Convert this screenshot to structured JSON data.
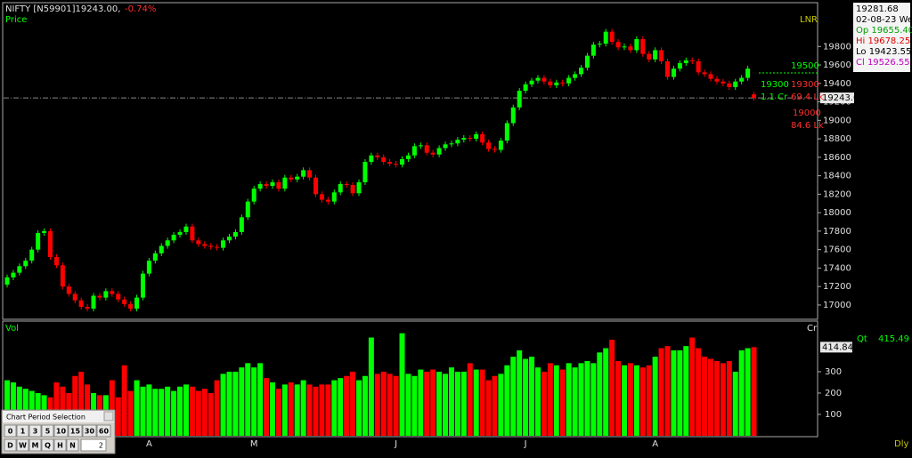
{
  "header": {
    "symbol": "NIFTY [N59901]19243.00,",
    "change": "-0.74%"
  },
  "info_panel": {
    "price": "19281.68",
    "date": "02-08-23 We",
    "open": "Op 19655.40",
    "high": "Hi 19678.25",
    "low": "Lo 19423.55",
    "close": "Cl 19526.55"
  },
  "chart_data": [
    {
      "type": "candlestick",
      "title": "Price",
      "mode_label": "LNR",
      "categories": [
        null,
        null,
        null,
        null,
        null,
        null,
        null,
        null,
        null,
        null,
        null,
        null,
        null,
        null,
        null,
        null,
        null,
        null,
        null,
        null,
        null,
        null,
        null,
        "A",
        null,
        null,
        null,
        null,
        null,
        null,
        null,
        null,
        null,
        null,
        null,
        null,
        null,
        null,
        null,
        null,
        "M",
        null,
        null,
        null,
        null,
        null,
        null,
        null,
        null,
        null,
        null,
        null,
        null,
        null,
        null,
        null,
        null,
        null,
        null,
        null,
        null,
        null,
        null,
        "J",
        null,
        null,
        null,
        null,
        null,
        null,
        null,
        null,
        null,
        null,
        null,
        null,
        null,
        null,
        null,
        null,
        null,
        null,
        null,
        null,
        "J",
        null,
        null,
        null,
        null,
        null,
        null,
        null,
        null,
        null,
        null,
        null,
        null,
        null,
        null,
        null,
        null,
        null,
        null,
        null,
        null,
        "A",
        null,
        null,
        null,
        null,
        null,
        null,
        null,
        null,
        null,
        null,
        null,
        null,
        null,
        null,
        null,
        null
      ],
      "open": [
        17220,
        17300,
        17350,
        17420,
        17480,
        17600,
        17780,
        17800,
        17520,
        17430,
        17200,
        17120,
        17050,
        16980,
        16960,
        17100,
        17080,
        17150,
        17120,
        17060,
        17010,
        16960,
        17080,
        17340,
        17480,
        17560,
        17640,
        17700,
        17760,
        17790,
        17850,
        17700,
        17660,
        17640,
        17630,
        17620,
        17700,
        17740,
        17790,
        17950,
        18120,
        18260,
        18310,
        18290,
        18330,
        18260,
        18380,
        18360,
        18390,
        18460,
        18380,
        18200,
        18140,
        18120,
        18220,
        18310,
        18300,
        18210,
        18330,
        18550,
        18620,
        18600,
        18550,
        18530,
        18520,
        18580,
        18620,
        18720,
        18730,
        18650,
        18630,
        18700,
        18740,
        18750,
        18790,
        18810,
        18800,
        18850,
        18760,
        18690,
        18680,
        18780,
        18970,
        19140,
        19320,
        19390,
        19430,
        19460,
        19420,
        19380,
        19410,
        19400,
        19460,
        19500,
        19570,
        19700,
        19820,
        19830,
        19960,
        19850,
        19790,
        19800,
        19760,
        19880,
        19720,
        19660,
        19760,
        19640,
        19470,
        19560,
        19620,
        19650,
        19640,
        19520,
        19500,
        19450,
        19420,
        19400,
        19360,
        19420,
        19460,
        19281.68
      ],
      "high": [
        17330,
        17380,
        17450,
        17510,
        17630,
        17810,
        17830,
        17830,
        17550,
        17460,
        17230,
        17150,
        17080,
        17010,
        17130,
        17130,
        17180,
        17180,
        17150,
        17090,
        17040,
        17110,
        17370,
        17510,
        17590,
        17670,
        17730,
        17790,
        17820,
        17880,
        17880,
        17730,
        17690,
        17670,
        17660,
        17730,
        17770,
        17820,
        17980,
        18150,
        18290,
        18340,
        18340,
        18360,
        18360,
        18410,
        18410,
        18420,
        18490,
        18490,
        18410,
        18230,
        18170,
        18250,
        18340,
        18340,
        18330,
        18360,
        18580,
        18650,
        18650,
        18630,
        18580,
        18560,
        18610,
        18650,
        18750,
        18760,
        18760,
        18680,
        18730,
        18770,
        18780,
        18820,
        18840,
        18840,
        18880,
        18880,
        18790,
        18720,
        18810,
        19000,
        19170,
        19350,
        19420,
        19460,
        19490,
        19490,
        19450,
        19440,
        19440,
        19490,
        19530,
        19600,
        19730,
        19850,
        19860,
        19990,
        19990,
        19880,
        19830,
        19830,
        19910,
        19910,
        19750,
        19790,
        19790,
        19670,
        19590,
        19650,
        19680,
        19680,
        19670,
        19550,
        19530,
        19480,
        19450,
        19430,
        19450,
        19490,
        19590,
        19310
      ],
      "low": [
        17190,
        17270,
        17320,
        17390,
        17450,
        17570,
        17750,
        17490,
        17400,
        17170,
        17090,
        17020,
        16950,
        16930,
        16930,
        17050,
        17050,
        17090,
        17030,
        16980,
        16930,
        16930,
        17050,
        17310,
        17450,
        17530,
        17610,
        17670,
        17730,
        17760,
        17670,
        17630,
        17610,
        17600,
        17590,
        17590,
        17670,
        17710,
        17760,
        17920,
        18090,
        18230,
        18260,
        18260,
        18230,
        18230,
        18330,
        18330,
        18360,
        18350,
        18170,
        18110,
        18090,
        18090,
        18190,
        18270,
        18180,
        18180,
        18300,
        18520,
        18570,
        18520,
        18500,
        18490,
        18490,
        18550,
        18590,
        18690,
        18620,
        18600,
        18600,
        18670,
        18710,
        18720,
        18760,
        18770,
        18770,
        18730,
        18660,
        18650,
        18650,
        18750,
        18940,
        19110,
        19290,
        19360,
        19400,
        19390,
        19350,
        19350,
        19370,
        19370,
        19430,
        19470,
        19540,
        19670,
        19790,
        19800,
        19820,
        19760,
        19760,
        19730,
        19730,
        19690,
        19630,
        19630,
        19610,
        19440,
        19440,
        19530,
        19590,
        19610,
        19490,
        19470,
        19420,
        19390,
        19370,
        19330,
        19330,
        19390,
        19430,
        19213
      ],
      "close": [
        17300,
        17350,
        17420,
        17480,
        17600,
        17780,
        17800,
        17520,
        17430,
        17200,
        17120,
        17050,
        16980,
        16960,
        17100,
        17080,
        17150,
        17120,
        17060,
        17010,
        16960,
        17080,
        17340,
        17480,
        17560,
        17640,
        17700,
        17760,
        17790,
        17850,
        17700,
        17660,
        17640,
        17630,
        17620,
        17700,
        17740,
        17790,
        17950,
        18120,
        18260,
        18310,
        18290,
        18330,
        18260,
        18380,
        18360,
        18390,
        18460,
        18380,
        18200,
        18140,
        18120,
        18220,
        18310,
        18300,
        18210,
        18330,
        18550,
        18620,
        18600,
        18550,
        18530,
        18520,
        18580,
        18620,
        18720,
        18730,
        18650,
        18630,
        18700,
        18740,
        18750,
        18790,
        18810,
        18800,
        18850,
        18760,
        18690,
        18680,
        18780,
        18970,
        19140,
        19320,
        19390,
        19430,
        19460,
        19420,
        19380,
        19410,
        19400,
        19460,
        19500,
        19570,
        19700,
        19820,
        19830,
        19960,
        19850,
        19790,
        19800,
        19760,
        19880,
        19720,
        19660,
        19760,
        19640,
        19470,
        19560,
        19620,
        19650,
        19640,
        19520,
        19500,
        19450,
        19420,
        19400,
        19360,
        19420,
        19460,
        19560,
        19243
      ],
      "up_color": "#00ff00",
      "down_color": "#ff0000",
      "ylim": [
        16855,
        20265
      ],
      "yticks": [
        17000,
        17200,
        17400,
        17600,
        17800,
        18000,
        18200,
        18400,
        18600,
        18800,
        19000,
        19200,
        19400,
        19600,
        19800
      ],
      "last_price": {
        "value": 19243,
        "label": "19243.0"
      },
      "level_labels": [
        {
          "text": "19500",
          "color": "#00ff00"
        },
        {
          "text": "19300",
          "color": "#00ff00"
        },
        {
          "text": "19300",
          "color": "#ff3030"
        },
        {
          "text": "1.1 Cr",
          "color": "#00ff00"
        },
        {
          "text": "69.4 Lk",
          "color": "#ff3030"
        },
        {
          "text": "19000",
          "color": "#ff3030"
        },
        {
          "text": "84.6 Lk",
          "color": "#ff3030"
        }
      ]
    },
    {
      "type": "bar",
      "title": "Vol",
      "unit_label": "Cr",
      "values": [
        260,
        250,
        230,
        220,
        210,
        200,
        190,
        180,
        250,
        230,
        200,
        280,
        300,
        240,
        200,
        190,
        190,
        260,
        180,
        330,
        210,
        260,
        230,
        240,
        220,
        220,
        230,
        210,
        230,
        240,
        230,
        210,
        220,
        200,
        260,
        290,
        300,
        300,
        320,
        340,
        320,
        340,
        270,
        250,
        220,
        240,
        250,
        240,
        260,
        240,
        230,
        240,
        240,
        260,
        270,
        280,
        300,
        260,
        280,
        460,
        290,
        300,
        290,
        280,
        480,
        290,
        280,
        310,
        300,
        310,
        300,
        290,
        320,
        300,
        300,
        340,
        310,
        310,
        260,
        280,
        290,
        330,
        370,
        400,
        360,
        370,
        320,
        300,
        340,
        330,
        310,
        340,
        320,
        340,
        350,
        340,
        390,
        410,
        450,
        350,
        330,
        340,
        330,
        320,
        330,
        370,
        410,
        420,
        400,
        400,
        420,
        460,
        410,
        370,
        360,
        350,
        340,
        350,
        300,
        400,
        410,
        414.84
      ],
      "ylim": [
        0,
        533
      ],
      "yticks": [
        100,
        200,
        300
      ],
      "last_value": 414.84,
      "qty_label": "Qt",
      "qty_value": "415.49"
    }
  ],
  "period_selector": {
    "title": "Chart Period Selection",
    "minute_buttons": [
      "0",
      "1",
      "3",
      "5",
      "10",
      "15",
      "30",
      "60"
    ],
    "period_buttons": [
      "D",
      "W",
      "M",
      "Q",
      "H",
      "N"
    ],
    "input": "2"
  },
  "footer": "Dly"
}
